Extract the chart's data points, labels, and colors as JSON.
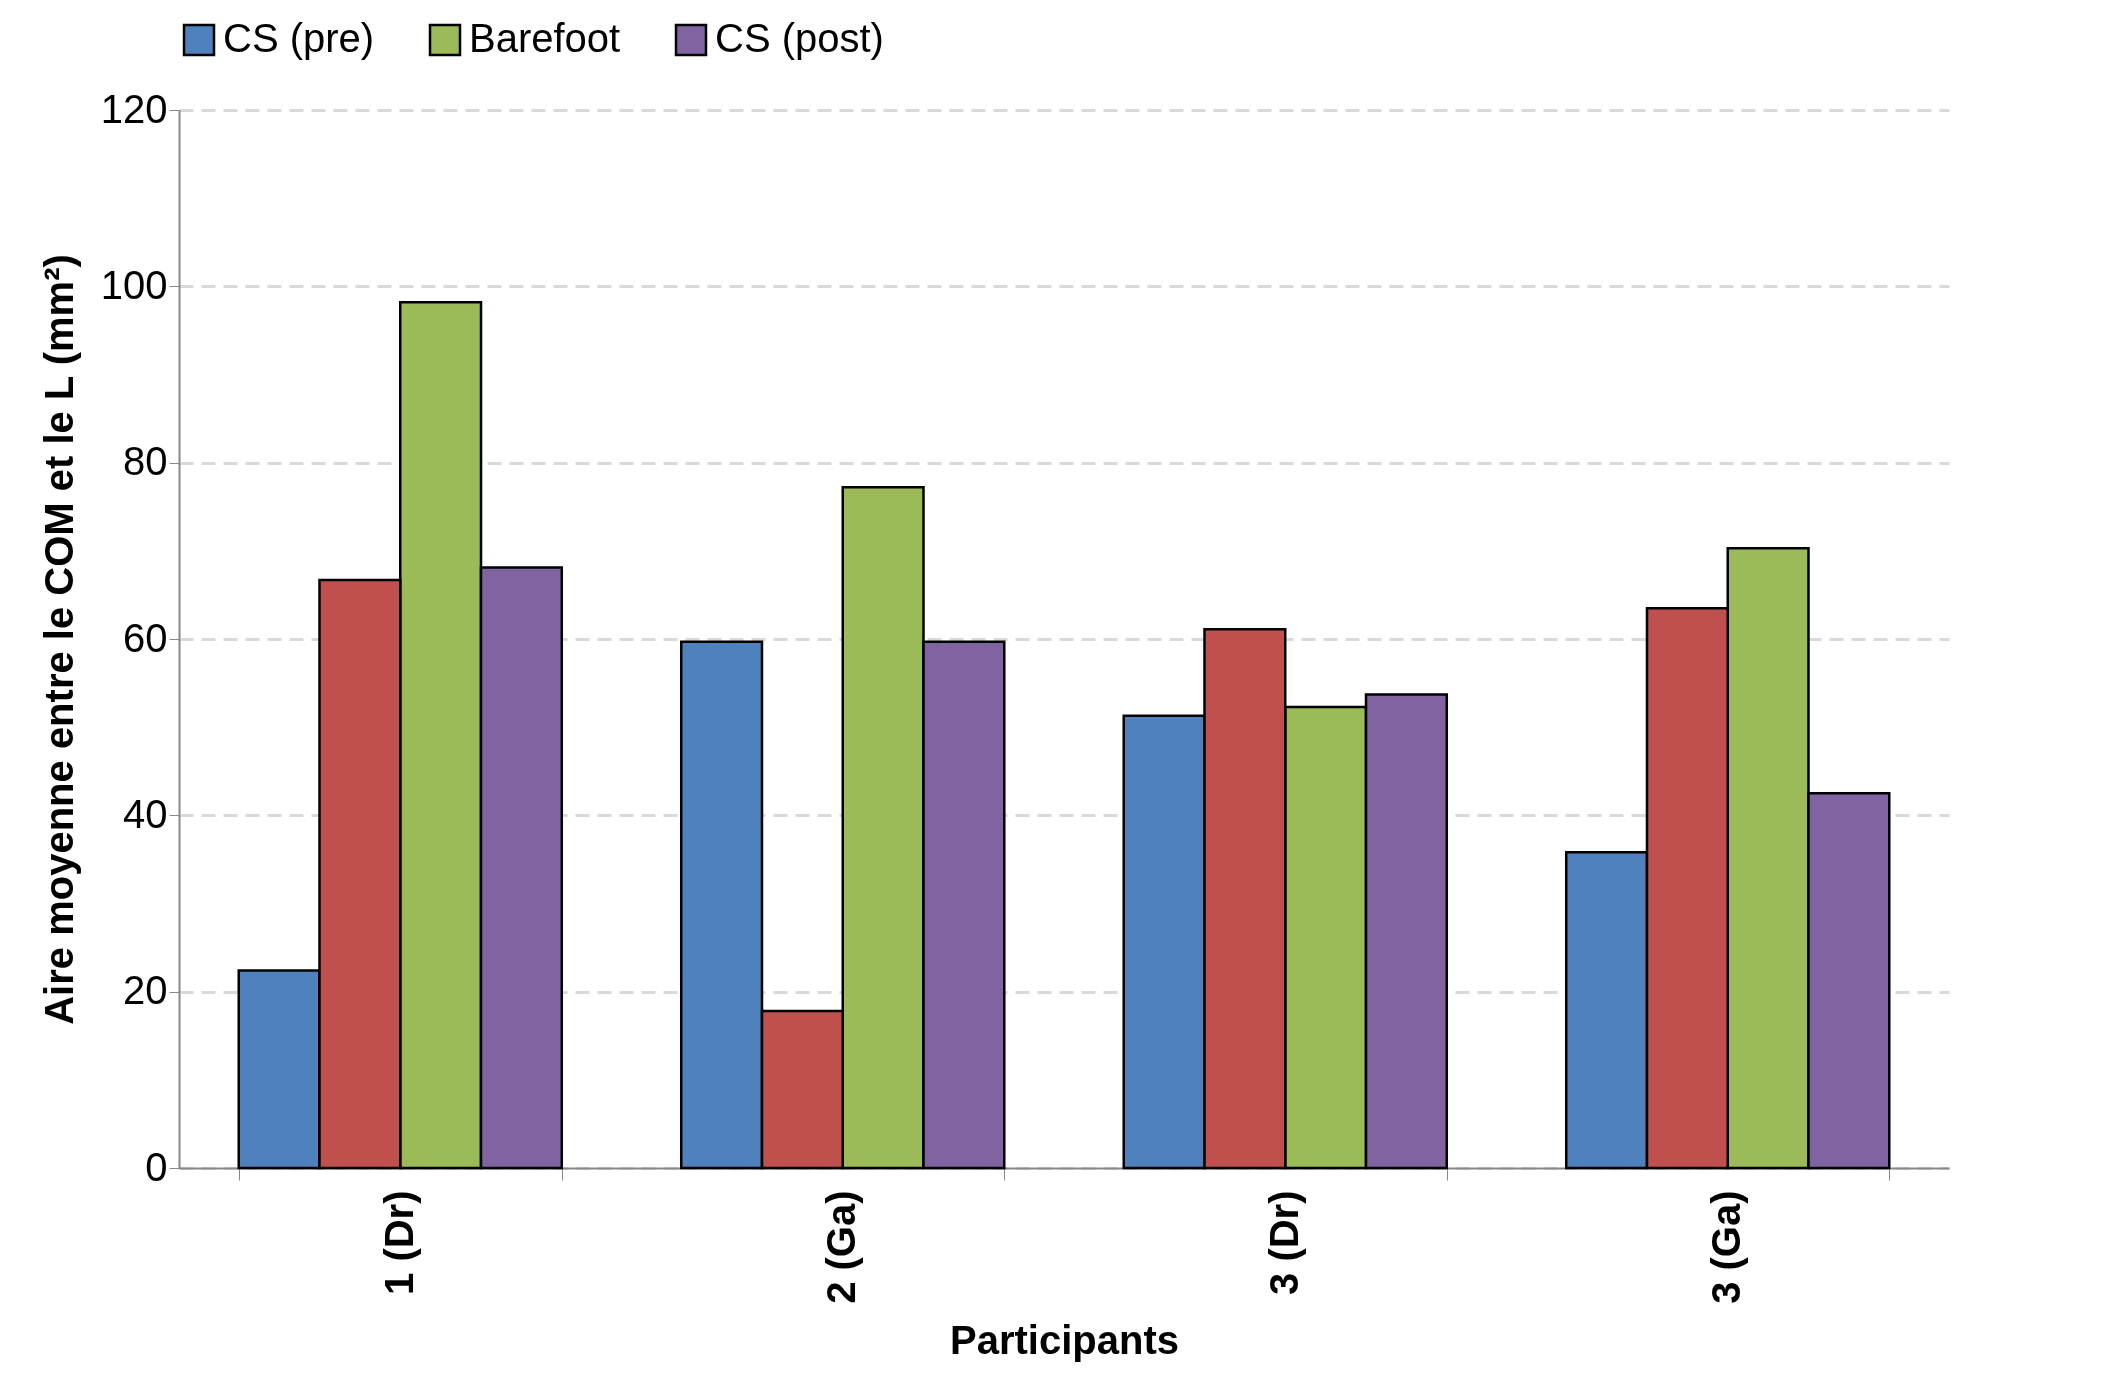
{
  "chart_data": {
    "type": "bar",
    "xlabel": "Participants",
    "ylabel": "Aire moyenne entre le COM et le L (mm²)",
    "categories": [
      "1 (Dr)",
      "2 (Ga)",
      "3 (Dr)",
      "3 (Ga)"
    ],
    "series": [
      {
        "name": "CS (pre)",
        "color": "#4f81bd",
        "values": [
          22.4,
          59.7,
          51.3,
          35.8
        ]
      },
      {
        "color": "#c0504d",
        "values": [
          66.7,
          17.8,
          61.1,
          63.5
        ]
      },
      {
        "name": "Barefoot",
        "color": "#9bbb59",
        "values": [
          98.2,
          77.2,
          52.3,
          70.3
        ]
      },
      {
        "name": "CS (post)",
        "color": "#8064a2",
        "values": [
          68.1,
          59.7,
          53.7,
          42.5
        ]
      }
    ],
    "ylim": [
      0,
      120
    ],
    "yticks": [
      0,
      20,
      40,
      60,
      80,
      100,
      120
    ],
    "grid": "y",
    "legend": "top"
  }
}
